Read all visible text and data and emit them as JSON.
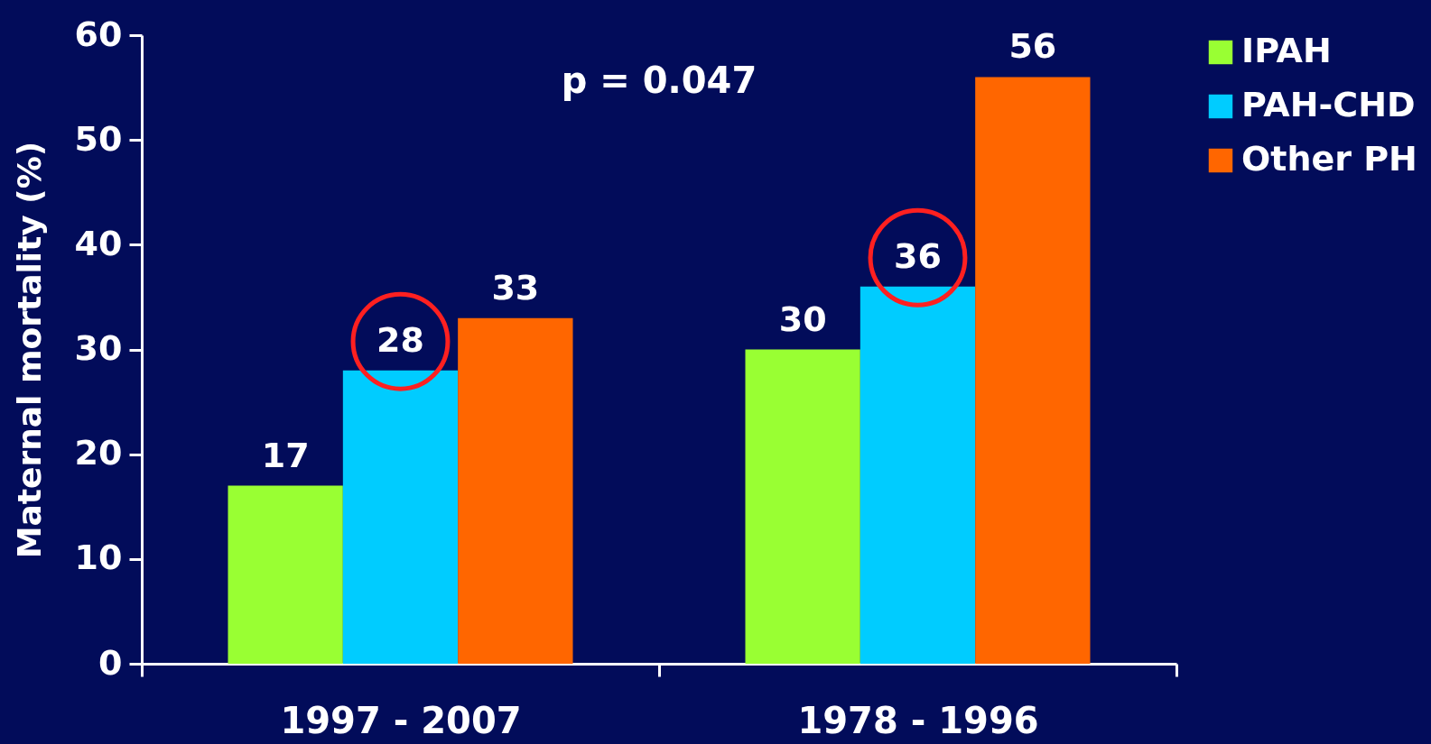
{
  "chart_data": {
    "type": "bar",
    "ylabel": "Maternal mortality (%)",
    "categories": [
      "1997 - 2007",
      "1978 - 1996"
    ],
    "series": [
      {
        "name": "IPAH",
        "color": "#99ff33",
        "values": [
          17,
          30
        ]
      },
      {
        "name": "PAH-CHD",
        "color": "#00ccff",
        "values": [
          28,
          36
        ]
      },
      {
        "name": "Other PH",
        "color": "#ff6600",
        "values": [
          33,
          56
        ]
      }
    ],
    "ylim": [
      0,
      60
    ],
    "yticks": [
      0,
      10,
      20,
      30,
      40,
      50,
      60
    ],
    "annotations": [
      "p = 0.047"
    ],
    "data_labels": true,
    "grid": false,
    "legend": "right"
  }
}
